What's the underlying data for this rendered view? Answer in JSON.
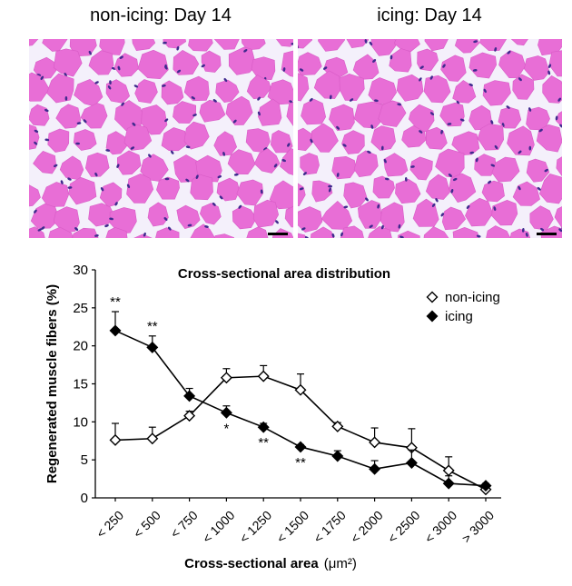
{
  "panels": {
    "left": {
      "title": "non-icing: Day 14"
    },
    "right": {
      "title": "icing: Day 14"
    }
  },
  "colors": {
    "tissue": "#e86ed6",
    "membrane": "#f4f0fb",
    "nucleus": "#3f2a8e",
    "scalebar": "#000000"
  },
  "chart_data": {
    "type": "line",
    "title": "Cross-sectional area distribution",
    "xlabel": "Cross-sectional area",
    "xlabel_unit": "(μm²)",
    "ylabel": "Regenerated muscle fibers (%)",
    "ylim": [
      0,
      30
    ],
    "yticks": [
      0,
      5,
      10,
      15,
      20,
      25,
      30
    ],
    "categories": [
      "< 250",
      "< 500",
      "< 750",
      "< 1000",
      "< 1250",
      "< 1500",
      "< 1750",
      "< 2000",
      "< 2500",
      "< 3000",
      "> 3000"
    ],
    "series": [
      {
        "name": "non-icing",
        "marker": "open-diamond",
        "values": [
          7.6,
          7.8,
          10.8,
          15.8,
          16.0,
          14.2,
          9.4,
          7.3,
          6.6,
          3.6,
          1.1
        ],
        "error": [
          2.2,
          1.5,
          0.6,
          1.2,
          1.4,
          2.1,
          0.5,
          1.9,
          2.5,
          1.8,
          0.3
        ]
      },
      {
        "name": "icing",
        "marker": "filled-diamond",
        "values": [
          22.0,
          19.8,
          13.4,
          11.2,
          9.3,
          6.7,
          5.5,
          3.8,
          4.6,
          1.9,
          1.6
        ],
        "error": [
          2.5,
          1.5,
          1.0,
          0.9,
          0.5,
          0.3,
          0.7,
          1.1,
          1.7,
          1.0,
          0.3
        ]
      }
    ],
    "significance": [
      {
        "category": "< 250",
        "label": "**"
      },
      {
        "category": "< 500",
        "label": "**"
      },
      {
        "category": "< 1000",
        "label": "*"
      },
      {
        "category": "< 1250",
        "label": "**"
      },
      {
        "category": "< 1500",
        "label": "**"
      }
    ],
    "legend_position": "top-right",
    "grid": false
  }
}
